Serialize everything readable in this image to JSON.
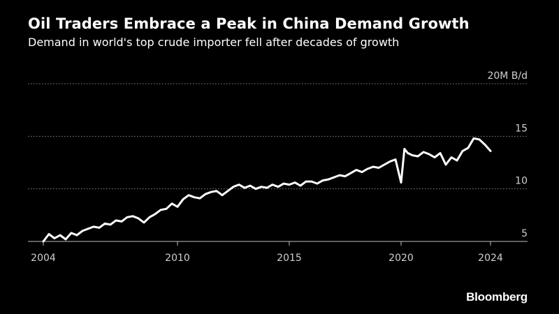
{
  "title": "Oil Traders Embrace a Peak in China Demand Growth",
  "subtitle": "Demand in world's top crude importer fell after decades of growth",
  "source": "Bloomberg",
  "colors": {
    "background": "#000000",
    "line": "#ffffff",
    "grid": "#8a8a8a",
    "text": "#ffffff",
    "tick": "#d0d0d0"
  },
  "chart_data": {
    "type": "line",
    "title": "Oil Traders Embrace a Peak in China Demand Growth",
    "subtitle": "Demand in world's top crude importer fell after decades of growth",
    "xlabel": "",
    "ylabel": "",
    "y_unit_label": "20M B/d",
    "y_ticks": [
      {
        "value": 20,
        "label": "20M B/d"
      },
      {
        "value": 15,
        "label": "15"
      },
      {
        "value": 10,
        "label": "10"
      },
      {
        "value": 5,
        "label": "5"
      }
    ],
    "x_ticks": [
      {
        "value": 2004,
        "label": "2004"
      },
      {
        "value": 2010,
        "label": "2010"
      },
      {
        "value": 2015,
        "label": "2015"
      },
      {
        "value": 2020,
        "label": "2020"
      },
      {
        "value": 2024,
        "label": "2024"
      }
    ],
    "xlim": [
      2004,
      2024.4
    ],
    "ylim": [
      4,
      20
    ],
    "grid": true,
    "series": [
      {
        "name": "",
        "x": [
          2004.0,
          2004.25,
          2004.5,
          2004.75,
          2005.0,
          2005.25,
          2005.5,
          2005.75,
          2006.0,
          2006.25,
          2006.5,
          2006.75,
          2007.0,
          2007.25,
          2007.5,
          2007.75,
          2008.0,
          2008.25,
          2008.5,
          2008.75,
          2009.0,
          2009.25,
          2009.5,
          2009.75,
          2010.0,
          2010.25,
          2010.5,
          2010.75,
          2011.0,
          2011.25,
          2011.5,
          2011.75,
          2012.0,
          2012.25,
          2012.5,
          2012.75,
          2013.0,
          2013.25,
          2013.5,
          2013.75,
          2014.0,
          2014.25,
          2014.5,
          2014.75,
          2015.0,
          2015.25,
          2015.5,
          2015.75,
          2016.0,
          2016.25,
          2016.5,
          2016.75,
          2017.0,
          2017.25,
          2017.5,
          2017.75,
          2018.0,
          2018.25,
          2018.5,
          2018.75,
          2019.0,
          2019.25,
          2019.5,
          2019.75,
          2020.0,
          2020.15,
          2020.3,
          2020.5,
          2020.75,
          2021.0,
          2021.25,
          2021.5,
          2021.75,
          2022.0,
          2022.25,
          2022.5,
          2022.75,
          2023.0,
          2023.25,
          2023.5,
          2023.75,
          2024.0
        ],
        "values": [
          5.0,
          5.7,
          5.3,
          5.6,
          5.2,
          5.8,
          5.6,
          6.0,
          6.2,
          6.4,
          6.3,
          6.7,
          6.6,
          7.0,
          6.9,
          7.3,
          7.4,
          7.2,
          6.8,
          7.3,
          7.6,
          8.0,
          8.1,
          8.6,
          8.3,
          9.0,
          9.4,
          9.2,
          9.1,
          9.5,
          9.7,
          9.8,
          9.4,
          9.8,
          10.2,
          10.4,
          10.1,
          10.3,
          10.0,
          10.2,
          10.1,
          10.4,
          10.2,
          10.5,
          10.4,
          10.6,
          10.3,
          10.7,
          10.7,
          10.5,
          10.8,
          10.9,
          11.1,
          11.3,
          11.2,
          11.5,
          11.8,
          11.6,
          11.9,
          12.1,
          12.0,
          12.3,
          12.6,
          12.8,
          10.6,
          13.8,
          13.4,
          13.2,
          13.1,
          13.5,
          13.3,
          13.0,
          13.4,
          12.3,
          13.0,
          12.7,
          13.6,
          13.9,
          14.8,
          14.7,
          14.2,
          13.6
        ]
      }
    ]
  }
}
